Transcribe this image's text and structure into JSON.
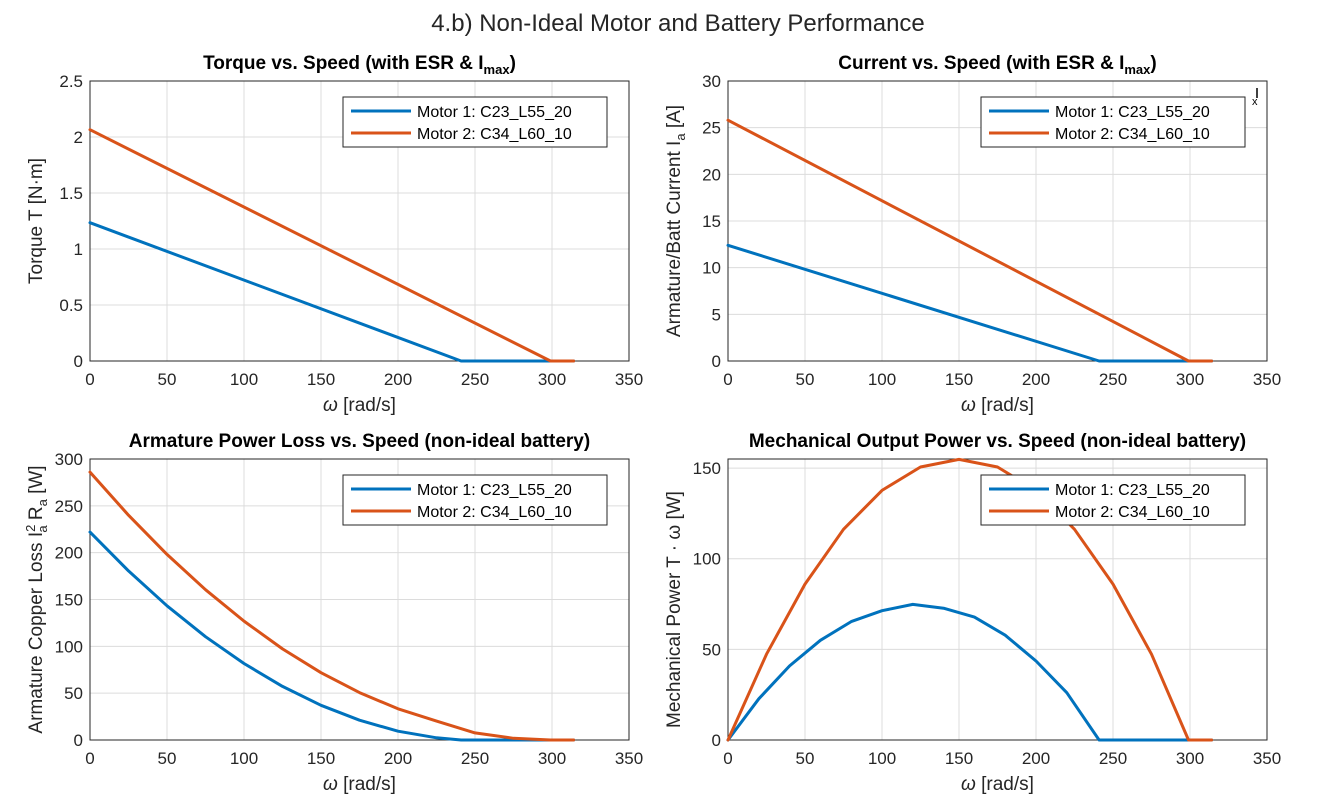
{
  "figure_title": "4.b) Non-Ideal Motor and Battery Performance",
  "colors": {
    "motor1": "#0072BD",
    "motor2": "#D95319",
    "grid": "#dcdcdc",
    "axis": "#262626"
  },
  "chart_data": [
    {
      "type": "line",
      "title": "Torque  vs.  Speed  (with  ESR  &  I",
      "title_sub": "max",
      "title_end": ")",
      "xlabel_sym": "ω",
      "xlabel_unit": "[rad/s]",
      "ylabel": "Torque   T  [N·m]",
      "ylabel_sub": "",
      "ylabel_end": "",
      "xlim": [
        0,
        350
      ],
      "ylim": [
        0,
        2.5
      ],
      "xticks": [
        "0",
        "50",
        "100",
        "150",
        "200",
        "250",
        "300",
        "350"
      ],
      "yticks": [
        "0",
        "0.5",
        "1",
        "1.5",
        "2",
        "2.5"
      ],
      "grid": true,
      "legend": "top-right",
      "series": [
        {
          "name": "Motor  1:  C23_L55_20",
          "x": [
            0,
            241,
            314
          ],
          "y": [
            1.235,
            0,
            0
          ]
        },
        {
          "name": "Motor  2:  C34_L60_10",
          "x": [
            0,
            299,
            314
          ],
          "y": [
            2.065,
            0,
            0
          ]
        }
      ]
    },
    {
      "type": "line",
      "title": "Current  vs.  Speed  (with  ESR  &  I",
      "title_sub": "max",
      "title_end": ")",
      "xlabel_sym": "ω",
      "xlabel_unit": "[rad/s]",
      "ylabel": "Armature/Batt  Current    I",
      "ylabel_sub": "a",
      "ylabel_end": "   [A]",
      "xlim": [
        0,
        350
      ],
      "ylim": [
        0,
        30
      ],
      "xticks": [
        "0",
        "50",
        "100",
        "150",
        "200",
        "250",
        "300",
        "350"
      ],
      "yticks": [
        "0",
        "5",
        "10",
        "15",
        "20",
        "25",
        "30"
      ],
      "grid": true,
      "legend": "top-right",
      "series": [
        {
          "name": "Motor  1:  C23_L55_20",
          "x": [
            0,
            241,
            314
          ],
          "y": [
            12.4,
            0,
            0
          ]
        },
        {
          "name": "Motor  2:  C34_L60_10",
          "x": [
            0,
            299,
            314
          ],
          "y": [
            25.8,
            0,
            0
          ]
        }
      ]
    },
    {
      "type": "line",
      "title": "Armature Power Loss vs. Speed (non-ideal battery)",
      "title_sub": "",
      "title_end": "",
      "xlabel_sym": "ω",
      "xlabel_unit": "[rad/s]",
      "ylabel": "Armature  Copper  Loss    I",
      "ylabel_sub": "a",
      "ylabel_sup": "2",
      "ylabel_mid": " R",
      "ylabel_sub2": "a",
      "ylabel_end": "    [W]",
      "xlim": [
        0,
        350
      ],
      "ylim": [
        0,
        300
      ],
      "xticks": [
        "0",
        "50",
        "100",
        "150",
        "200",
        "250",
        "300",
        "350"
      ],
      "yticks": [
        "0",
        "50",
        "100",
        "150",
        "200",
        "250",
        "300"
      ],
      "grid": true,
      "legend": "top-right",
      "series": [
        {
          "name": "Motor  1:  C23_L55_20",
          "x": [
            0,
            25,
            50,
            75,
            100,
            125,
            150,
            175,
            200,
            225,
            241,
            314
          ],
          "y": [
            222,
            180.5,
            143.3,
            110.3,
            81.7,
            57.2,
            37.0,
            21.1,
            9.4,
            2.4,
            0,
            0
          ]
        },
        {
          "name": "Motor  2:  C34_L60_10",
          "x": [
            0,
            25,
            50,
            75,
            100,
            125,
            150,
            175,
            200,
            225,
            250,
            275,
            299,
            314
          ],
          "y": [
            286,
            240.0,
            198.2,
            160.5,
            126.9,
            97.3,
            71.9,
            50.6,
            33.3,
            20.2,
            7.6,
            1.8,
            0,
            0
          ]
        }
      ]
    },
    {
      "type": "line",
      "title": "Mechanical Output Power vs. Speed (non-ideal battery)",
      "title_sub": "",
      "title_end": "",
      "xlabel_sym": "ω",
      "xlabel_unit": "[rad/s]",
      "ylabel": "Mechanical  Power     T · ω     [W]",
      "ylabel_sub": "",
      "ylabel_end": "",
      "xlim": [
        0,
        350
      ],
      "ylim": [
        0,
        155
      ],
      "xticks": [
        "0",
        "50",
        "100",
        "150",
        "200",
        "250",
        "300",
        "350"
      ],
      "yticks": [
        "0",
        "50",
        "100",
        "150"
      ],
      "grid": true,
      "legend": "top-right",
      "series": [
        {
          "name": "Motor  1:  C23_L55_20",
          "x": [
            0,
            20,
            40,
            60,
            80,
            100,
            120,
            140,
            160,
            180,
            200,
            220,
            241,
            314
          ],
          "y": [
            0,
            22.7,
            40.9,
            55.0,
            65.3,
            71.3,
            74.8,
            72.7,
            67.8,
            57.8,
            43.6,
            26.1,
            0,
            0
          ]
        },
        {
          "name": "Motor  2:  C34_L60_10",
          "x": [
            0,
            25,
            50,
            75,
            100,
            125,
            150,
            175,
            200,
            225,
            250,
            275,
            299,
            314
          ],
          "y": [
            0,
            47.3,
            86.0,
            116.2,
            137.7,
            150.6,
            154.8,
            150.6,
            137.7,
            116.2,
            86.0,
            47.3,
            0,
            0
          ]
        }
      ]
    }
  ]
}
